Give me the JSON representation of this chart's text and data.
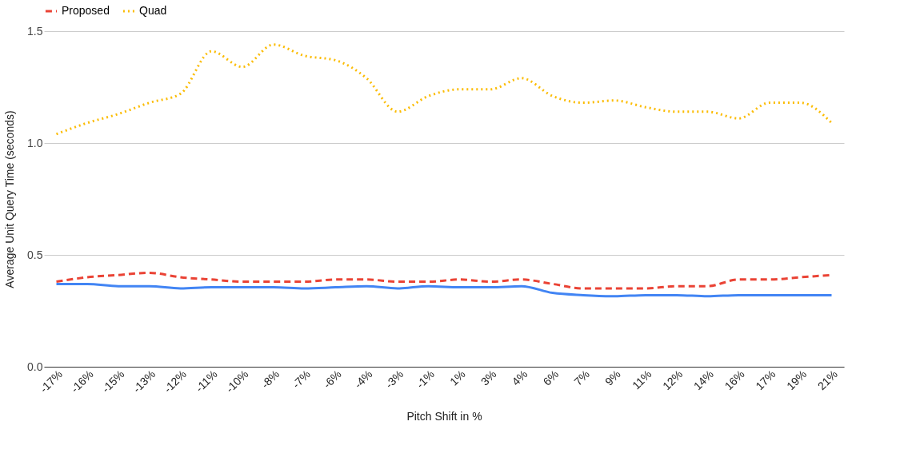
{
  "chart_data": {
    "type": "line",
    "xlabel": "Pitch Shift in %",
    "ylabel": "Average Unit Query Time (seconds)",
    "categories": [
      "-17%",
      "-16%",
      "-15%",
      "-13%",
      "-12%",
      "-11%",
      "-10%",
      "-8%",
      "-7%",
      "-6%",
      "-4%",
      "-3%",
      "-1%",
      "1%",
      "3%",
      "4%",
      "6%",
      "7%",
      "9%",
      "11%",
      "12%",
      "14%",
      "16%",
      "17%",
      "19%",
      "21%"
    ],
    "series": [
      {
        "color": "#4285f4",
        "line_style": "solid",
        "values": [
          0.37,
          0.37,
          0.36,
          0.36,
          0.35,
          0.355,
          0.355,
          0.355,
          0.35,
          0.355,
          0.36,
          0.35,
          0.36,
          0.355,
          0.355,
          0.36,
          0.33,
          0.32,
          0.315,
          0.32,
          0.32,
          0.315,
          0.32,
          0.32,
          0.32,
          0.32
        ]
      },
      {
        "name": "Proposed",
        "color": "#ea4335",
        "line_style": "dashed",
        "values": [
          0.38,
          0.4,
          0.41,
          0.42,
          0.4,
          0.39,
          0.38,
          0.38,
          0.38,
          0.39,
          0.39,
          0.38,
          0.38,
          0.39,
          0.38,
          0.39,
          0.37,
          0.35,
          0.35,
          0.35,
          0.36,
          0.36,
          0.39,
          0.39,
          0.4,
          0.41
        ]
      },
      {
        "name": "Quad",
        "color": "#fbbc04",
        "line_style": "dotted",
        "values": [
          1.04,
          1.09,
          1.13,
          1.18,
          1.22,
          1.41,
          1.34,
          1.44,
          1.39,
          1.37,
          1.29,
          1.14,
          1.21,
          1.24,
          1.24,
          1.29,
          1.21,
          1.18,
          1.19,
          1.16,
          1.14,
          1.14,
          1.11,
          1.18,
          1.18,
          1.09
        ]
      }
    ],
    "ylim": [
      0,
      1.5
    ],
    "yticks": [
      {
        "value": 0,
        "label": "0.0"
      },
      {
        "value": 0.5,
        "label": "0.5"
      },
      {
        "value": 1,
        "label": "1.0"
      },
      {
        "value": 1.5,
        "label": "1.5"
      }
    ],
    "grid": "y",
    "legend": "top",
    "marker": "none"
  }
}
